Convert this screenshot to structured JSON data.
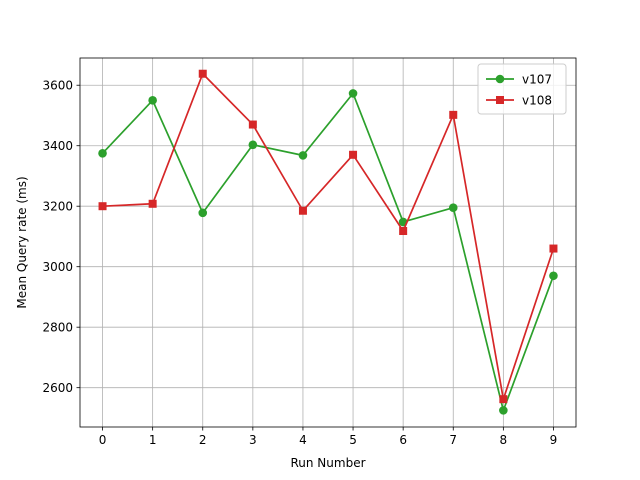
{
  "chart_data": {
    "type": "line",
    "title": "",
    "xlabel": "Run Number",
    "ylabel": "Mean Query rate (ms)",
    "x": [
      0,
      1,
      2,
      3,
      4,
      5,
      6,
      7,
      8,
      9
    ],
    "xlim": [
      -0.45,
      9.45
    ],
    "ylim": [
      2470,
      3690
    ],
    "yticks": [
      2600,
      2800,
      3000,
      3200,
      3400,
      3600
    ],
    "grid": true,
    "legend_position": "top-right",
    "series": [
      {
        "name": "v107",
        "color": "#2ca02c",
        "marker": "circle",
        "values": [
          3375,
          3550,
          3178,
          3403,
          3368,
          3573,
          3148,
          3195,
          2525,
          2970
        ]
      },
      {
        "name": "v108",
        "color": "#d62728",
        "marker": "square",
        "values": [
          3200,
          3208,
          3638,
          3470,
          3185,
          3370,
          3118,
          3502,
          2562,
          3060
        ]
      }
    ]
  }
}
